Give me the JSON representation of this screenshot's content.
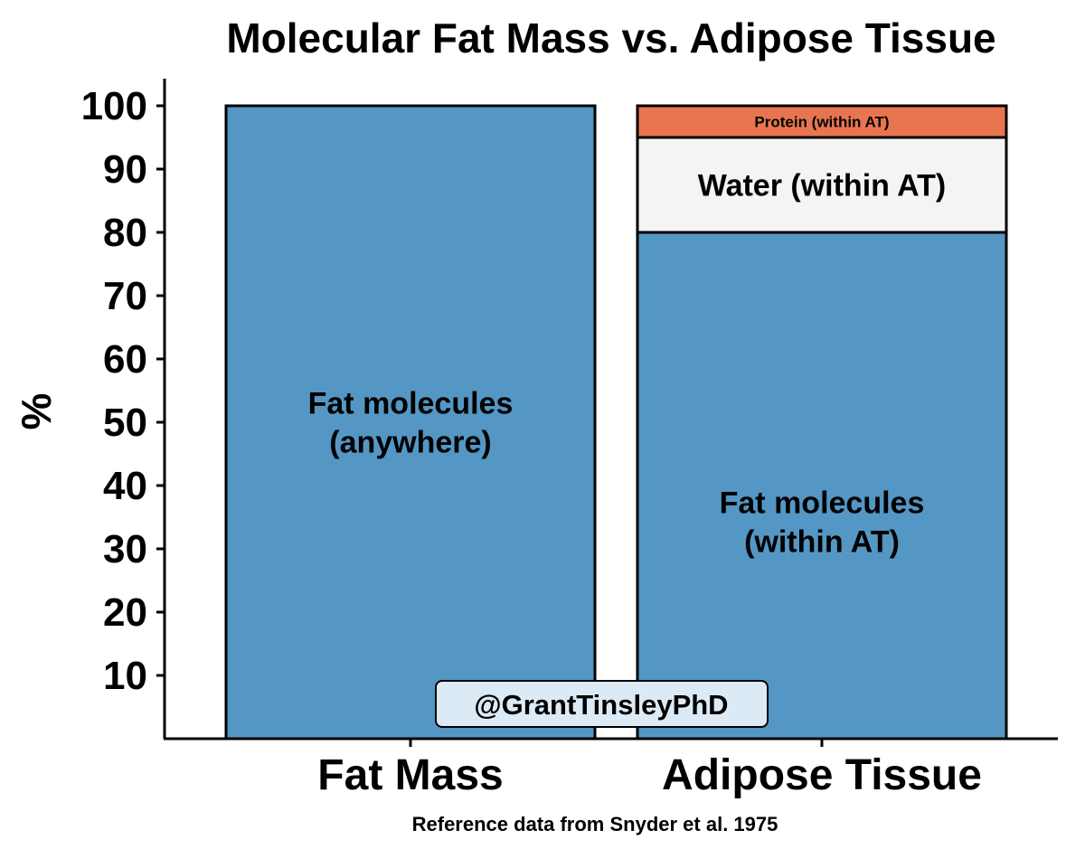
{
  "chart_data": {
    "type": "bar",
    "stacked": true,
    "title": "Molecular Fat Mass vs. Adipose Tissue",
    "xlabel": "",
    "ylabel": "%",
    "caption": "Reference data from Snyder et al. 1975",
    "watermark": "@GrantTinsleyPhD",
    "categories": [
      "Fat Mass",
      "Adipose Tissue"
    ],
    "ylim": [
      0,
      104
    ],
    "yticks": [
      10,
      20,
      30,
      40,
      50,
      60,
      70,
      80,
      90,
      100
    ],
    "grid": false,
    "legend": "none",
    "bars": [
      {
        "category": "Fat Mass",
        "segments": [
          {
            "label": "Fat molecules\n(anywhere)",
            "value": 100,
            "color": "#5497C4",
            "label_size": "large"
          }
        ]
      },
      {
        "category": "Adipose Tissue",
        "segments": [
          {
            "label": "Fat molecules\n(within AT)",
            "value": 80,
            "color": "#5497C4",
            "label_size": "large"
          },
          {
            "label": "Water (within AT)",
            "value": 15,
            "color": "#F4F4F4",
            "label_size": "large"
          },
          {
            "label": "Protein (within AT)",
            "value": 5,
            "color": "#E87550",
            "label_size": "small"
          }
        ]
      }
    ]
  }
}
